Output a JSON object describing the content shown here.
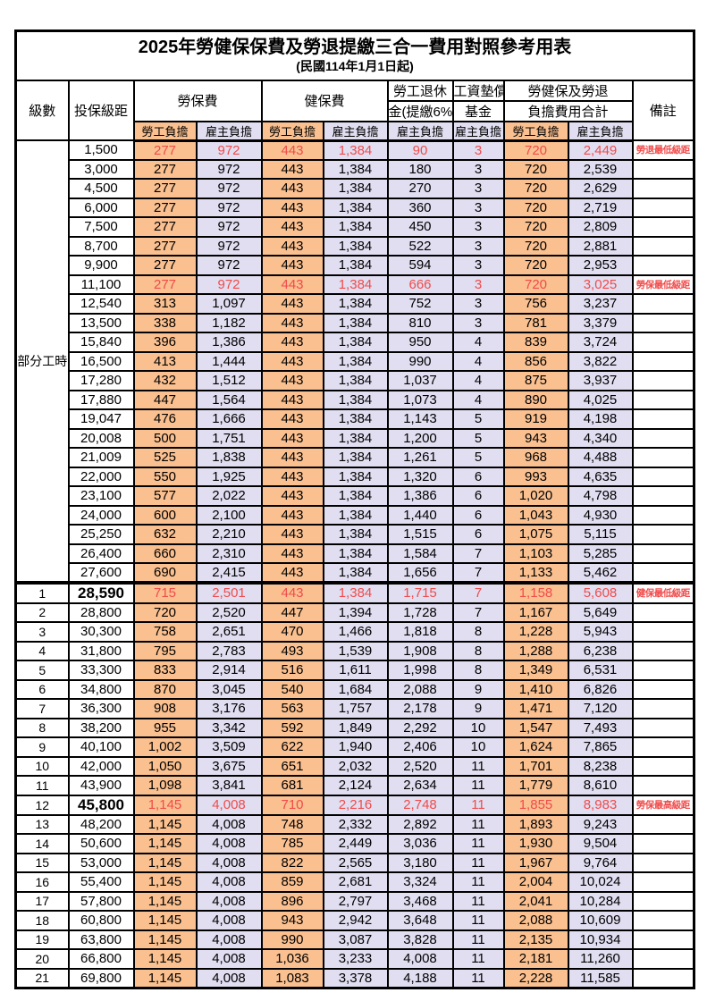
{
  "title": "2025年勞健保保費及勞退提繳三合一費用對照參考用表",
  "subtitle": "(民國114年1月1日起)",
  "colors": {
    "employee_bg": "#FAC090",
    "employer_bg": "#E0DEF0",
    "highlight_text": "#F04B4B",
    "border": "#000000"
  },
  "header": {
    "level": "級數",
    "bracket": "投保級距",
    "labor_insurance": "勞保費",
    "health_insurance": "健保費",
    "pension_line1": "勞工退休",
    "pension_line2": "金(提繳6%)",
    "wage_fund_line1": "工資墊償",
    "wage_fund_line2": "基金",
    "total_line1": "勞健保及勞退",
    "total_line2": "負擔費用合計",
    "remark": "備註",
    "employee": "勞工負擔",
    "employer": "雇主負擔"
  },
  "table": {
    "part_time_label": "部分工時",
    "part_time_span": 23,
    "value_col_classes": [
      "oc",
      "lc",
      "oc",
      "lc",
      "lc",
      "lc",
      "oc",
      "lc"
    ],
    "rows": [
      {
        "level": null,
        "bracket": "1,500",
        "v": [
          "277",
          "972",
          "443",
          "1,384",
          "90",
          "3",
          "720",
          "2,449"
        ],
        "remark": "勞退最低級距",
        "red": true,
        "bold": false,
        "thick_top": false
      },
      {
        "level": null,
        "bracket": "3,000",
        "v": [
          "277",
          "972",
          "443",
          "1,384",
          "180",
          "3",
          "720",
          "2,539"
        ],
        "remark": "",
        "red": false,
        "bold": false,
        "thick_top": false
      },
      {
        "level": null,
        "bracket": "4,500",
        "v": [
          "277",
          "972",
          "443",
          "1,384",
          "270",
          "3",
          "720",
          "2,629"
        ],
        "remark": "",
        "red": false,
        "bold": false,
        "thick_top": false
      },
      {
        "level": null,
        "bracket": "6,000",
        "v": [
          "277",
          "972",
          "443",
          "1,384",
          "360",
          "3",
          "720",
          "2,719"
        ],
        "remark": "",
        "red": false,
        "bold": false,
        "thick_top": false
      },
      {
        "level": null,
        "bracket": "7,500",
        "v": [
          "277",
          "972",
          "443",
          "1,384",
          "450",
          "3",
          "720",
          "2,809"
        ],
        "remark": "",
        "red": false,
        "bold": false,
        "thick_top": false
      },
      {
        "level": null,
        "bracket": "8,700",
        "v": [
          "277",
          "972",
          "443",
          "1,384",
          "522",
          "3",
          "720",
          "2,881"
        ],
        "remark": "",
        "red": false,
        "bold": false,
        "thick_top": false
      },
      {
        "level": null,
        "bracket": "9,900",
        "v": [
          "277",
          "972",
          "443",
          "1,384",
          "594",
          "3",
          "720",
          "2,953"
        ],
        "remark": "",
        "red": false,
        "bold": false,
        "thick_top": false
      },
      {
        "level": null,
        "bracket": "11,100",
        "v": [
          "277",
          "972",
          "443",
          "1,384",
          "666",
          "3",
          "720",
          "3,025"
        ],
        "remark": "勞保最低級距",
        "red": true,
        "bold": false,
        "thick_top": false
      },
      {
        "level": null,
        "bracket": "12,540",
        "v": [
          "313",
          "1,097",
          "443",
          "1,384",
          "752",
          "3",
          "756",
          "3,237"
        ],
        "remark": "",
        "red": false,
        "bold": false,
        "thick_top": false
      },
      {
        "level": null,
        "bracket": "13,500",
        "v": [
          "338",
          "1,182",
          "443",
          "1,384",
          "810",
          "3",
          "781",
          "3,379"
        ],
        "remark": "",
        "red": false,
        "bold": false,
        "thick_top": false
      },
      {
        "level": null,
        "bracket": "15,840",
        "v": [
          "396",
          "1,386",
          "443",
          "1,384",
          "950",
          "4",
          "839",
          "3,724"
        ],
        "remark": "",
        "red": false,
        "bold": false,
        "thick_top": false
      },
      {
        "level": null,
        "bracket": "16,500",
        "v": [
          "413",
          "1,444",
          "443",
          "1,384",
          "990",
          "4",
          "856",
          "3,822"
        ],
        "remark": "",
        "red": false,
        "bold": false,
        "thick_top": false
      },
      {
        "level": null,
        "bracket": "17,280",
        "v": [
          "432",
          "1,512",
          "443",
          "1,384",
          "1,037",
          "4",
          "875",
          "3,937"
        ],
        "remark": "",
        "red": false,
        "bold": false,
        "thick_top": false
      },
      {
        "level": null,
        "bracket": "17,880",
        "v": [
          "447",
          "1,564",
          "443",
          "1,384",
          "1,073",
          "4",
          "890",
          "4,025"
        ],
        "remark": "",
        "red": false,
        "bold": false,
        "thick_top": false
      },
      {
        "level": null,
        "bracket": "19,047",
        "v": [
          "476",
          "1,666",
          "443",
          "1,384",
          "1,143",
          "5",
          "919",
          "4,198"
        ],
        "remark": "",
        "red": false,
        "bold": false,
        "thick_top": false
      },
      {
        "level": null,
        "bracket": "20,008",
        "v": [
          "500",
          "1,751",
          "443",
          "1,384",
          "1,200",
          "5",
          "943",
          "4,340"
        ],
        "remark": "",
        "red": false,
        "bold": false,
        "thick_top": false
      },
      {
        "level": null,
        "bracket": "21,009",
        "v": [
          "525",
          "1,838",
          "443",
          "1,384",
          "1,261",
          "5",
          "968",
          "4,488"
        ],
        "remark": "",
        "red": false,
        "bold": false,
        "thick_top": false
      },
      {
        "level": null,
        "bracket": "22,000",
        "v": [
          "550",
          "1,925",
          "443",
          "1,384",
          "1,320",
          "6",
          "993",
          "4,635"
        ],
        "remark": "",
        "red": false,
        "bold": false,
        "thick_top": false
      },
      {
        "level": null,
        "bracket": "23,100",
        "v": [
          "577",
          "2,022",
          "443",
          "1,384",
          "1,386",
          "6",
          "1,020",
          "4,798"
        ],
        "remark": "",
        "red": false,
        "bold": false,
        "thick_top": false
      },
      {
        "level": null,
        "bracket": "24,000",
        "v": [
          "600",
          "2,100",
          "443",
          "1,384",
          "1,440",
          "6",
          "1,043",
          "4,930"
        ],
        "remark": "",
        "red": false,
        "bold": false,
        "thick_top": false
      },
      {
        "level": null,
        "bracket": "25,250",
        "v": [
          "632",
          "2,210",
          "443",
          "1,384",
          "1,515",
          "6",
          "1,075",
          "5,115"
        ],
        "remark": "",
        "red": false,
        "bold": false,
        "thick_top": false
      },
      {
        "level": null,
        "bracket": "26,400",
        "v": [
          "660",
          "2,310",
          "443",
          "1,384",
          "1,584",
          "7",
          "1,103",
          "5,285"
        ],
        "remark": "",
        "red": false,
        "bold": false,
        "thick_top": false
      },
      {
        "level": null,
        "bracket": "27,600",
        "v": [
          "690",
          "2,415",
          "443",
          "1,384",
          "1,656",
          "7",
          "1,133",
          "5,462"
        ],
        "remark": "",
        "red": false,
        "bold": false,
        "thick_top": false
      },
      {
        "level": "1",
        "bracket": "28,590",
        "v": [
          "715",
          "2,501",
          "443",
          "1,384",
          "1,715",
          "7",
          "1,158",
          "5,608"
        ],
        "remark": "健保最低級距",
        "red": true,
        "bold": true,
        "thick_top": true
      },
      {
        "level": "2",
        "bracket": "28,800",
        "v": [
          "720",
          "2,520",
          "447",
          "1,394",
          "1,728",
          "7",
          "1,167",
          "5,649"
        ],
        "remark": "",
        "red": false,
        "bold": false,
        "thick_top": false
      },
      {
        "level": "3",
        "bracket": "30,300",
        "v": [
          "758",
          "2,651",
          "470",
          "1,466",
          "1,818",
          "8",
          "1,228",
          "5,943"
        ],
        "remark": "",
        "red": false,
        "bold": false,
        "thick_top": false
      },
      {
        "level": "4",
        "bracket": "31,800",
        "v": [
          "795",
          "2,783",
          "493",
          "1,539",
          "1,908",
          "8",
          "1,288",
          "6,238"
        ],
        "remark": "",
        "red": false,
        "bold": false,
        "thick_top": false
      },
      {
        "level": "5",
        "bracket": "33,300",
        "v": [
          "833",
          "2,914",
          "516",
          "1,611",
          "1,998",
          "8",
          "1,349",
          "6,531"
        ],
        "remark": "",
        "red": false,
        "bold": false,
        "thick_top": false
      },
      {
        "level": "6",
        "bracket": "34,800",
        "v": [
          "870",
          "3,045",
          "540",
          "1,684",
          "2,088",
          "9",
          "1,410",
          "6,826"
        ],
        "remark": "",
        "red": false,
        "bold": false,
        "thick_top": false
      },
      {
        "level": "7",
        "bracket": "36,300",
        "v": [
          "908",
          "3,176",
          "563",
          "1,757",
          "2,178",
          "9",
          "1,471",
          "7,120"
        ],
        "remark": "",
        "red": false,
        "bold": false,
        "thick_top": false
      },
      {
        "level": "8",
        "bracket": "38,200",
        "v": [
          "955",
          "3,342",
          "592",
          "1,849",
          "2,292",
          "10",
          "1,547",
          "7,493"
        ],
        "remark": "",
        "red": false,
        "bold": false,
        "thick_top": false
      },
      {
        "level": "9",
        "bracket": "40,100",
        "v": [
          "1,002",
          "3,509",
          "622",
          "1,940",
          "2,406",
          "10",
          "1,624",
          "7,865"
        ],
        "remark": "",
        "red": false,
        "bold": false,
        "thick_top": false
      },
      {
        "level": "10",
        "bracket": "42,000",
        "v": [
          "1,050",
          "3,675",
          "651",
          "2,032",
          "2,520",
          "11",
          "1,701",
          "8,238"
        ],
        "remark": "",
        "red": false,
        "bold": false,
        "thick_top": false
      },
      {
        "level": "11",
        "bracket": "43,900",
        "v": [
          "1,098",
          "3,841",
          "681",
          "2,124",
          "2,634",
          "11",
          "1,779",
          "8,610"
        ],
        "remark": "",
        "red": false,
        "bold": false,
        "thick_top": false
      },
      {
        "level": "12",
        "bracket": "45,800",
        "v": [
          "1,145",
          "4,008",
          "710",
          "2,216",
          "2,748",
          "11",
          "1,855",
          "8,983"
        ],
        "remark": "勞保最高級距",
        "red": true,
        "bold": true,
        "thick_top": false
      },
      {
        "level": "13",
        "bracket": "48,200",
        "v": [
          "1,145",
          "4,008",
          "748",
          "2,332",
          "2,892",
          "11",
          "1,893",
          "9,243"
        ],
        "remark": "",
        "red": false,
        "bold": false,
        "thick_top": false
      },
      {
        "level": "14",
        "bracket": "50,600",
        "v": [
          "1,145",
          "4,008",
          "785",
          "2,449",
          "3,036",
          "11",
          "1,930",
          "9,504"
        ],
        "remark": "",
        "red": false,
        "bold": false,
        "thick_top": false
      },
      {
        "level": "15",
        "bracket": "53,000",
        "v": [
          "1,145",
          "4,008",
          "822",
          "2,565",
          "3,180",
          "11",
          "1,967",
          "9,764"
        ],
        "remark": "",
        "red": false,
        "bold": false,
        "thick_top": false
      },
      {
        "level": "16",
        "bracket": "55,400",
        "v": [
          "1,145",
          "4,008",
          "859",
          "2,681",
          "3,324",
          "11",
          "2,004",
          "10,024"
        ],
        "remark": "",
        "red": false,
        "bold": false,
        "thick_top": false
      },
      {
        "level": "17",
        "bracket": "57,800",
        "v": [
          "1,145",
          "4,008",
          "896",
          "2,797",
          "3,468",
          "11",
          "2,041",
          "10,284"
        ],
        "remark": "",
        "red": false,
        "bold": false,
        "thick_top": false
      },
      {
        "level": "18",
        "bracket": "60,800",
        "v": [
          "1,145",
          "4,008",
          "943",
          "2,942",
          "3,648",
          "11",
          "2,088",
          "10,609"
        ],
        "remark": "",
        "red": false,
        "bold": false,
        "thick_top": false
      },
      {
        "level": "19",
        "bracket": "63,800",
        "v": [
          "1,145",
          "4,008",
          "990",
          "3,087",
          "3,828",
          "11",
          "2,135",
          "10,934"
        ],
        "remark": "",
        "red": false,
        "bold": false,
        "thick_top": false
      },
      {
        "level": "20",
        "bracket": "66,800",
        "v": [
          "1,145",
          "4,008",
          "1,036",
          "3,233",
          "4,008",
          "11",
          "2,181",
          "11,260"
        ],
        "remark": "",
        "red": false,
        "bold": false,
        "thick_top": false
      },
      {
        "level": "21",
        "bracket": "69,800",
        "v": [
          "1,145",
          "4,008",
          "1,083",
          "3,378",
          "4,188",
          "11",
          "2,228",
          "11,585"
        ],
        "remark": "",
        "red": false,
        "bold": false,
        "thick_top": false
      }
    ]
  }
}
